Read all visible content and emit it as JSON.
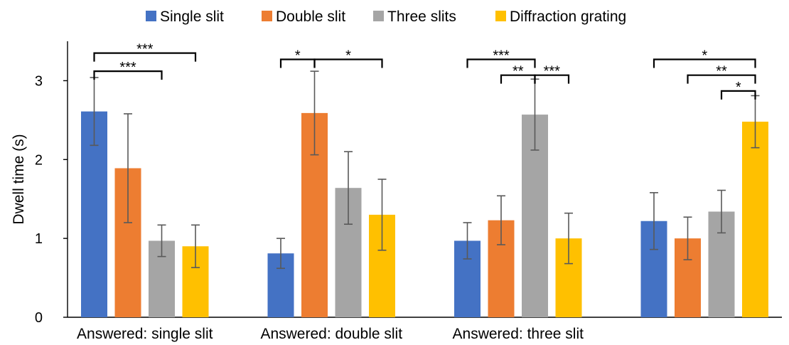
{
  "chart_data": {
    "type": "bar",
    "title": "",
    "xlabel": "",
    "ylabel": "Dwell time (s)",
    "ylim": [
      0,
      3.5
    ],
    "yticks": [
      0,
      1,
      2,
      3
    ],
    "grid": false,
    "legend_position": "top",
    "categories": [
      "Answered: single slit",
      "Answered: double slit",
      "Answered: three slit",
      ""
    ],
    "series": [
      {
        "name": "Single slit",
        "color": "#4472C4",
        "values": [
          2.61,
          0.81,
          0.97,
          1.22
        ],
        "errors": [
          0.43,
          0.19,
          0.23,
          0.36
        ]
      },
      {
        "name": "Double slit",
        "color": "#ED7D31",
        "values": [
          1.89,
          2.59,
          1.23,
          1.0
        ],
        "errors": [
          0.69,
          0.53,
          0.31,
          0.27
        ]
      },
      {
        "name": "Three slits",
        "color": "#A5A5A5",
        "values": [
          0.97,
          1.64,
          2.57,
          1.34
        ],
        "errors": [
          0.2,
          0.46,
          0.45,
          0.27
        ]
      },
      {
        "name": "Diffraction grating",
        "color": "#FFC000",
        "values": [
          0.9,
          1.3,
          1.0,
          2.48
        ],
        "errors": [
          0.27,
          0.45,
          0.32,
          0.33
        ]
      }
    ],
    "significance": [
      {
        "group": 0,
        "from": 0,
        "to": 3,
        "label": "***",
        "y": 3.35
      },
      {
        "group": 0,
        "from": 0,
        "to": 2,
        "label": "***",
        "y": 3.12
      },
      {
        "group": 1,
        "from": 0,
        "to": 1,
        "label": "*",
        "y": 3.27
      },
      {
        "group": 1,
        "from": 1,
        "to": 3,
        "label": "*",
        "y": 3.27
      },
      {
        "group": 2,
        "from": 0,
        "to": 2,
        "label": "***",
        "y": 3.27
      },
      {
        "group": 2,
        "from": 1,
        "to": 2,
        "label": "**",
        "y": 3.07
      },
      {
        "group": 2,
        "from": 2,
        "to": 3,
        "label": "***",
        "y": 3.07
      },
      {
        "group": 3,
        "from": 0,
        "to": 3,
        "label": "*",
        "y": 3.27
      },
      {
        "group": 3,
        "from": 1,
        "to": 3,
        "label": "**",
        "y": 3.07
      },
      {
        "group": 3,
        "from": 2,
        "to": 3,
        "label": "*",
        "y": 2.87
      }
    ]
  }
}
